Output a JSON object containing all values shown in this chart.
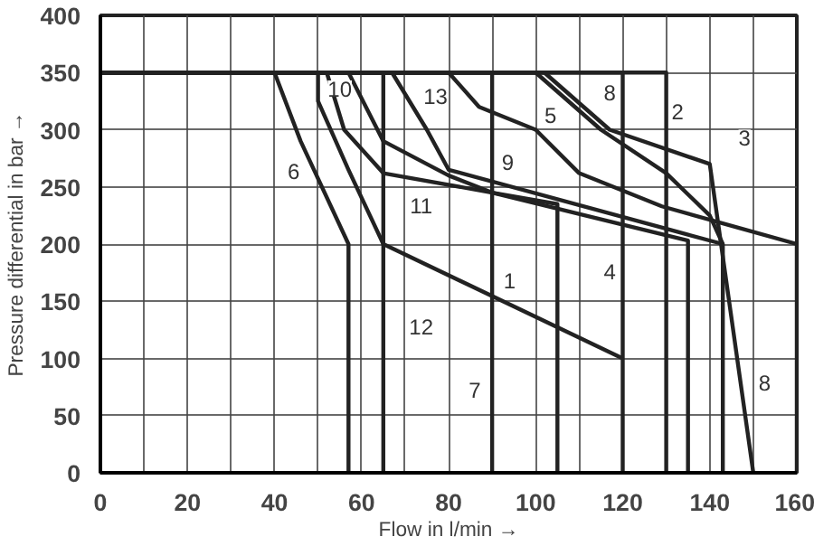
{
  "chart_data": {
    "type": "line",
    "xlabel": "Flow in l/min →",
    "ylabel": "Pressure differential in bar →",
    "xlim": [
      0,
      160
    ],
    "ylim": [
      0,
      400
    ],
    "xticks": [
      0,
      {
        "value": 10,
        "label": null
      },
      20,
      {
        "value": 30,
        "label": null
      },
      40,
      {
        "value": 50,
        "label": null
      },
      60,
      {
        "value": 70,
        "label": null
      },
      80,
      {
        "value": 90,
        "label": null
      },
      100,
      {
        "value": 110,
        "label": null
      },
      120,
      {
        "value": 130,
        "label": null
      },
      140,
      {
        "value": 150,
        "label": null
      },
      160
    ],
    "yticks": [
      0,
      50,
      100,
      150,
      200,
      250,
      300,
      350,
      400
    ],
    "grid": true,
    "marker": "none",
    "line_style": "solid",
    "series": [
      {
        "color": "#222222",
        "x": [
          0,
          50,
          50,
          57,
          65,
          120
        ],
        "values": [
          350,
          350,
          325,
          265,
          200,
          100
        ]
      },
      {
        "color": "#222222",
        "x": [
          0,
          40,
          46,
          57,
          57
        ],
        "values": [
          350,
          350,
          290,
          200,
          0
        ]
      },
      {
        "color": "#222222",
        "x": [
          0,
          52,
          56,
          65,
          90,
          105,
          105
        ],
        "values": [
          350,
          350,
          300,
          262,
          245,
          235,
          0
        ]
      },
      {
        "color": "#222222",
        "x": [
          0,
          57,
          65,
          80,
          90,
          135,
          135
        ],
        "values": [
          350,
          350,
          290,
          260,
          245,
          203,
          0
        ]
      },
      {
        "color": "#222222",
        "x": [
          0,
          67,
          75,
          80,
          143,
          143
        ],
        "values": [
          350,
          350,
          300,
          265,
          200,
          0
        ]
      },
      {
        "color": "#222222",
        "x": [
          0,
          80,
          87,
          100,
          110,
          129,
          160,
          160
        ],
        "values": [
          350,
          350,
          320,
          300,
          262,
          233,
          200,
          0
        ]
      },
      {
        "color": "#222222",
        "x": [
          0,
          100,
          115,
          130,
          140,
          143
        ],
        "values": [
          350,
          350,
          300,
          262,
          225,
          200
        ]
      },
      {
        "color": "#222222",
        "x": [
          0,
          102,
          117,
          140,
          150
        ],
        "values": [
          350,
          350,
          300,
          270,
          0
        ]
      },
      {
        "color": "#222222",
        "x": [
          0,
          65,
          65
        ],
        "values": [
          350,
          350,
          0
        ]
      },
      {
        "color": "#222222",
        "x": [
          0,
          90,
          90
        ],
        "values": [
          350,
          350,
          0
        ]
      },
      {
        "color": "#222222",
        "x": [
          0,
          120,
          120
        ],
        "values": [
          350,
          350,
          0
        ]
      },
      {
        "color": "#222222",
        "x": [
          0,
          130,
          130
        ],
        "values": [
          350,
          350,
          0
        ]
      }
    ],
    "annotations": [
      {
        "text": "1",
        "x": 94,
        "y": 168
      },
      {
        "text": "2",
        "x": 132.6,
        "y": 316
      },
      {
        "text": "3",
        "x": 148,
        "y": 293
      },
      {
        "text": "4",
        "x": 117,
        "y": 176
      },
      {
        "text": "5",
        "x": 103.4,
        "y": 313
      },
      {
        "text": "6",
        "x": 44.4,
        "y": 264
      },
      {
        "text": "7",
        "x": 86,
        "y": 73
      },
      {
        "text": "8",
        "x": 117,
        "y": 333
      },
      {
        "text": "8",
        "x": 152.6,
        "y": 79
      },
      {
        "text": "9",
        "x": 93.6,
        "y": 272
      },
      {
        "text": "10",
        "x": 55,
        "y": 336
      },
      {
        "text": "11",
        "x": 73.7,
        "y": 234
      },
      {
        "text": "12",
        "x": 73.7,
        "y": 128
      },
      {
        "text": "13",
        "x": 77,
        "y": 330
      }
    ]
  }
}
